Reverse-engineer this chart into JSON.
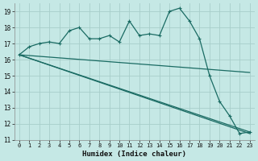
{
  "xlabel": "Humidex (Indice chaleur)",
  "background_color": "#c5e8e5",
  "grid_color": "#a8ceca",
  "line_color": "#1a6b63",
  "xlim": [
    -0.5,
    23.5
  ],
  "ylim": [
    11,
    19.5
  ],
  "yticks": [
    11,
    12,
    13,
    14,
    15,
    16,
    17,
    18,
    19
  ],
  "xticks": [
    0,
    1,
    2,
    3,
    4,
    5,
    6,
    7,
    8,
    9,
    10,
    11,
    12,
    13,
    14,
    15,
    16,
    17,
    18,
    19,
    20,
    21,
    22,
    23
  ],
  "series1_x": [
    0,
    1,
    2,
    3,
    4,
    5,
    6,
    7,
    8,
    9,
    10,
    11,
    12,
    13,
    14,
    15,
    16,
    17,
    18,
    19,
    20,
    21,
    22,
    23
  ],
  "series1_y": [
    16.3,
    16.8,
    17.0,
    17.1,
    17.0,
    17.8,
    18.0,
    17.3,
    17.3,
    17.5,
    17.1,
    18.4,
    17.5,
    17.6,
    17.5,
    19.0,
    19.2,
    18.4,
    17.3,
    15.0,
    13.4,
    12.5,
    11.4,
    11.5
  ],
  "line2_x": [
    0,
    23
  ],
  "line2_y": [
    16.3,
    11.5
  ],
  "line3_x": [
    0,
    23
  ],
  "line3_y": [
    16.3,
    11.4
  ],
  "line4_x": [
    0,
    23
  ],
  "line4_y": [
    16.3,
    15.2
  ],
  "figwidth": 3.2,
  "figheight": 2.0,
  "dpi": 100
}
